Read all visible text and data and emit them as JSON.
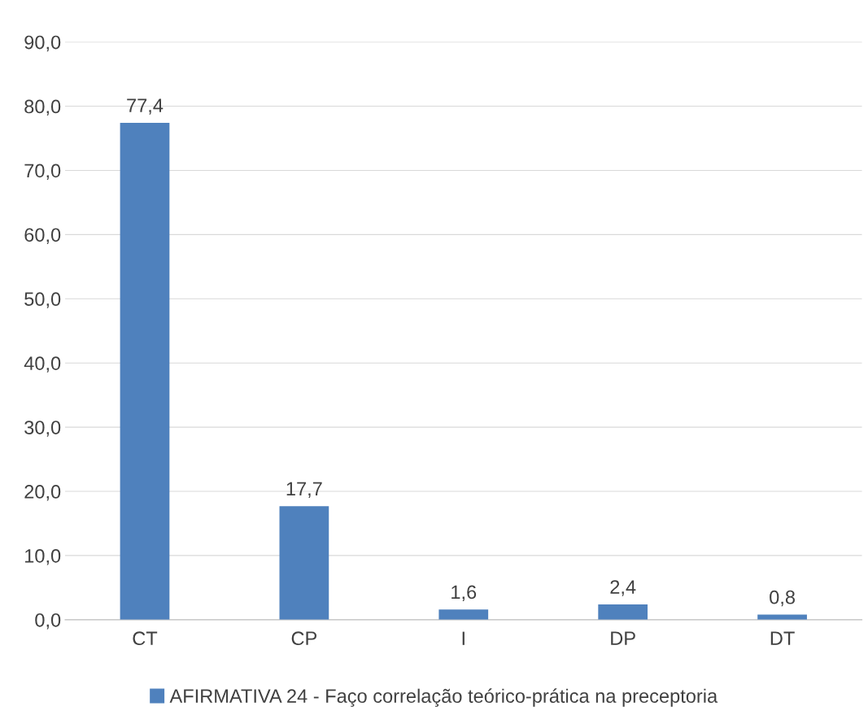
{
  "chart_data": {
    "type": "bar",
    "categories": [
      "CT",
      "CP",
      "I",
      "DP",
      "DT"
    ],
    "series": [
      {
        "name": "AFIRMATIVA 24 - Faço correlação teórico-prática na preceptoria",
        "color": "#4f81bd",
        "values": [
          77.4,
          17.7,
          1.6,
          2.4,
          0.8
        ],
        "value_labels": [
          "77,4",
          "17,7",
          "1,6",
          "2,4",
          "0,8"
        ]
      }
    ],
    "ylim": [
      0,
      90
    ],
    "yticks": [
      {
        "value": 0,
        "label": "0,0"
      },
      {
        "value": 10,
        "label": "10,0"
      },
      {
        "value": 20,
        "label": "20,0"
      },
      {
        "value": 30,
        "label": "30,0"
      },
      {
        "value": 40,
        "label": "40,0"
      },
      {
        "value": 50,
        "label": "50,0"
      },
      {
        "value": 60,
        "label": "60,0"
      },
      {
        "value": 70,
        "label": "70,0"
      },
      {
        "value": 80,
        "label": "80,0"
      },
      {
        "value": 90,
        "label": "90,0"
      }
    ],
    "grid": "y",
    "legend": "bottom"
  }
}
